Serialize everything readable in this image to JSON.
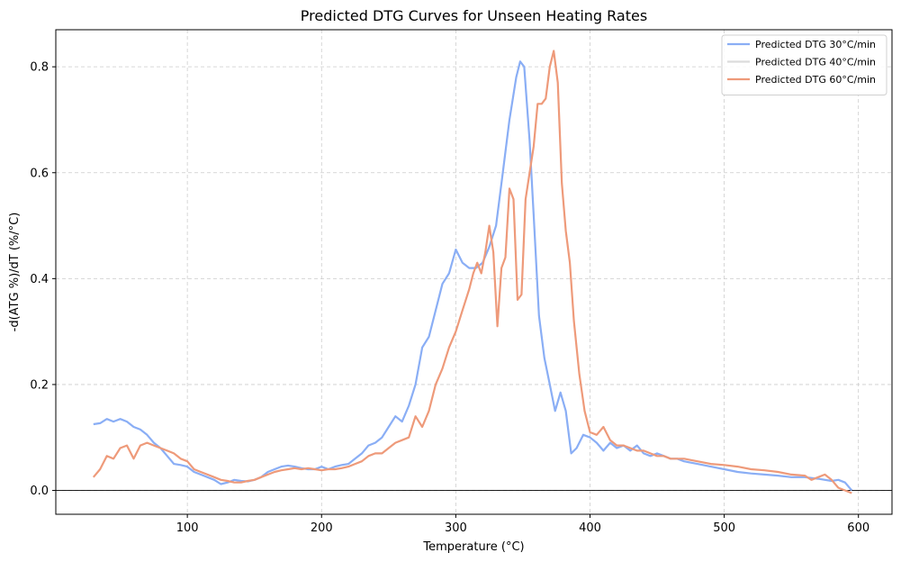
{
  "chart_data": {
    "type": "line",
    "title": "Predicted DTG Curves for Unseen Heating Rates",
    "xlabel": "Temperature (°C)",
    "ylabel": "-d(ATG %)/dT  (%/°C)",
    "xlim": [
      2,
      625
    ],
    "ylim": [
      -0.045,
      0.87
    ],
    "xticks": [
      100,
      200,
      300,
      400,
      500,
      600
    ],
    "yticks": [
      0.0,
      0.2,
      0.4,
      0.6,
      0.8
    ],
    "xtick_labels": [
      "100",
      "200",
      "300",
      "400",
      "500",
      "600"
    ],
    "ytick_labels": [
      "0.0",
      "0.2",
      "0.4",
      "0.6",
      "0.8"
    ],
    "grid": true,
    "legend_position": "top-right",
    "zero_line": true,
    "series": [
      {
        "name": "Predicted DTG 30°C/min",
        "color": "#8aaef5",
        "x": [
          30,
          35,
          40,
          45,
          50,
          55,
          60,
          65,
          70,
          75,
          80,
          85,
          90,
          95,
          100,
          105,
          110,
          115,
          120,
          125,
          130,
          135,
          140,
          145,
          150,
          155,
          160,
          165,
          170,
          175,
          180,
          185,
          190,
          195,
          200,
          205,
          210,
          215,
          220,
          225,
          230,
          235,
          240,
          245,
          250,
          255,
          260,
          265,
          270,
          275,
          280,
          285,
          290,
          295,
          300,
          305,
          310,
          315,
          320,
          325,
          330,
          335,
          340,
          345,
          348,
          351,
          355,
          358,
          362,
          366,
          370,
          374,
          378,
          382,
          386,
          390,
          395,
          400,
          405,
          410,
          415,
          420,
          425,
          430,
          435,
          440,
          445,
          450,
          455,
          460,
          465,
          470,
          480,
          490,
          500,
          510,
          520,
          530,
          540,
          550,
          560,
          570,
          580,
          585,
          590,
          595
        ],
        "y": [
          0.125,
          0.127,
          0.135,
          0.13,
          0.135,
          0.13,
          0.12,
          0.115,
          0.105,
          0.09,
          0.08,
          0.065,
          0.05,
          0.048,
          0.045,
          0.035,
          0.03,
          0.025,
          0.02,
          0.012,
          0.015,
          0.02,
          0.018,
          0.017,
          0.02,
          0.025,
          0.035,
          0.04,
          0.045,
          0.047,
          0.045,
          0.042,
          0.04,
          0.04,
          0.045,
          0.04,
          0.045,
          0.048,
          0.05,
          0.06,
          0.07,
          0.085,
          0.09,
          0.1,
          0.12,
          0.14,
          0.13,
          0.16,
          0.2,
          0.27,
          0.29,
          0.34,
          0.39,
          0.41,
          0.455,
          0.43,
          0.42,
          0.42,
          0.43,
          0.46,
          0.5,
          0.6,
          0.7,
          0.78,
          0.81,
          0.8,
          0.66,
          0.52,
          0.33,
          0.25,
          0.2,
          0.15,
          0.185,
          0.15,
          0.07,
          0.08,
          0.105,
          0.1,
          0.09,
          0.075,
          0.09,
          0.08,
          0.085,
          0.075,
          0.085,
          0.07,
          0.065,
          0.07,
          0.065,
          0.06,
          0.06,
          0.055,
          0.05,
          0.045,
          0.04,
          0.035,
          0.032,
          0.03,
          0.028,
          0.025,
          0.025,
          0.022,
          0.018,
          0.02,
          0.015,
          0.0
        ]
      },
      {
        "name": "Predicted DTG 40°C/min",
        "color": "#dcdcdc",
        "x": [],
        "y": []
      },
      {
        "name": "Predicted DTG 60°C/min",
        "color": "#ee9a7a",
        "x": [
          30,
          35,
          40,
          45,
          50,
          55,
          60,
          65,
          70,
          75,
          80,
          85,
          90,
          95,
          100,
          105,
          110,
          115,
          120,
          125,
          130,
          135,
          140,
          145,
          150,
          155,
          160,
          165,
          170,
          175,
          180,
          185,
          190,
          195,
          200,
          205,
          210,
          215,
          220,
          225,
          230,
          235,
          240,
          245,
          250,
          255,
          260,
          265,
          270,
          275,
          280,
          285,
          290,
          295,
          300,
          305,
          310,
          313,
          316,
          319,
          322,
          325,
          328,
          331,
          334,
          337,
          340,
          343,
          346,
          349,
          352,
          355,
          358,
          361,
          364,
          367,
          370,
          373,
          376,
          379,
          382,
          385,
          388,
          392,
          396,
          400,
          405,
          410,
          415,
          420,
          425,
          430,
          435,
          440,
          445,
          450,
          455,
          460,
          465,
          470,
          480,
          490,
          500,
          510,
          520,
          530,
          540,
          550,
          560,
          565,
          570,
          575,
          580,
          585,
          590,
          595
        ],
        "y": [
          0.025,
          0.04,
          0.065,
          0.06,
          0.08,
          0.085,
          0.06,
          0.085,
          0.09,
          0.085,
          0.08,
          0.075,
          0.07,
          0.06,
          0.055,
          0.04,
          0.035,
          0.03,
          0.025,
          0.02,
          0.018,
          0.015,
          0.015,
          0.018,
          0.02,
          0.025,
          0.03,
          0.035,
          0.038,
          0.04,
          0.042,
          0.04,
          0.042,
          0.04,
          0.038,
          0.04,
          0.04,
          0.042,
          0.045,
          0.05,
          0.055,
          0.065,
          0.07,
          0.07,
          0.08,
          0.09,
          0.095,
          0.1,
          0.14,
          0.12,
          0.15,
          0.2,
          0.23,
          0.27,
          0.3,
          0.34,
          0.38,
          0.41,
          0.43,
          0.41,
          0.45,
          0.5,
          0.45,
          0.31,
          0.42,
          0.44,
          0.57,
          0.55,
          0.36,
          0.37,
          0.55,
          0.6,
          0.65,
          0.73,
          0.73,
          0.74,
          0.8,
          0.83,
          0.77,
          0.58,
          0.49,
          0.43,
          0.32,
          0.22,
          0.15,
          0.11,
          0.105,
          0.12,
          0.095,
          0.085,
          0.085,
          0.08,
          0.075,
          0.075,
          0.07,
          0.065,
          0.065,
          0.06,
          0.06,
          0.06,
          0.055,
          0.05,
          0.048,
          0.045,
          0.04,
          0.038,
          0.035,
          0.03,
          0.028,
          0.02,
          0.025,
          0.03,
          0.02,
          0.005,
          0.0,
          -0.005
        ]
      }
    ]
  }
}
